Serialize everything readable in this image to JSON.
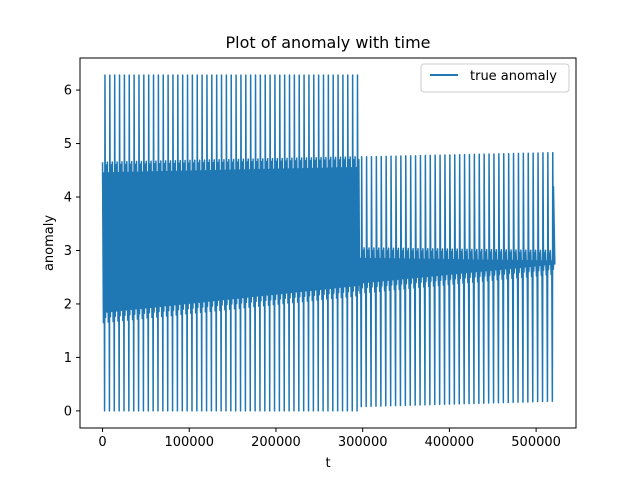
{
  "chart_data": {
    "type": "line",
    "title": "Plot of anomaly with time",
    "xlabel": "t",
    "ylabel": "anomaly",
    "xlim": [
      -26000,
      546000
    ],
    "ylim": [
      -0.32,
      6.6
    ],
    "xticks": [
      0,
      100000,
      200000,
      300000,
      400000,
      500000
    ],
    "yticks": [
      0,
      1,
      2,
      3,
      4,
      5,
      6
    ],
    "grid": false,
    "legend_position": "top-right",
    "series": [
      {
        "name": "true anomaly",
        "color": "#1f77b4",
        "x_range": [
          0,
          520000
        ],
        "description_points": [
          {
            "t": 0,
            "value": 4.7
          },
          {
            "t": 300000,
            "value": 4.75
          },
          {
            "t": 300000,
            "value": 3.05
          },
          {
            "t": 520000,
            "value": 4.2
          }
        ],
        "segments": [
          {
            "t_start": 0,
            "t_end": 296000,
            "period": 5600,
            "min": 0.0,
            "max": 6.28,
            "envelope_low": [
              1.65,
              2.15
            ],
            "envelope_high": [
              4.65,
              4.75
            ]
          },
          {
            "t_start": 296000,
            "t_end": 520000,
            "period": 5650,
            "min": [
              0.08,
              0.18
            ],
            "max": [
              4.75,
              4.83
            ],
            "envelope_low": [
              2.2,
              2.55
            ],
            "envelope_high": [
              3.05,
              3.0
            ]
          }
        ]
      }
    ]
  }
}
